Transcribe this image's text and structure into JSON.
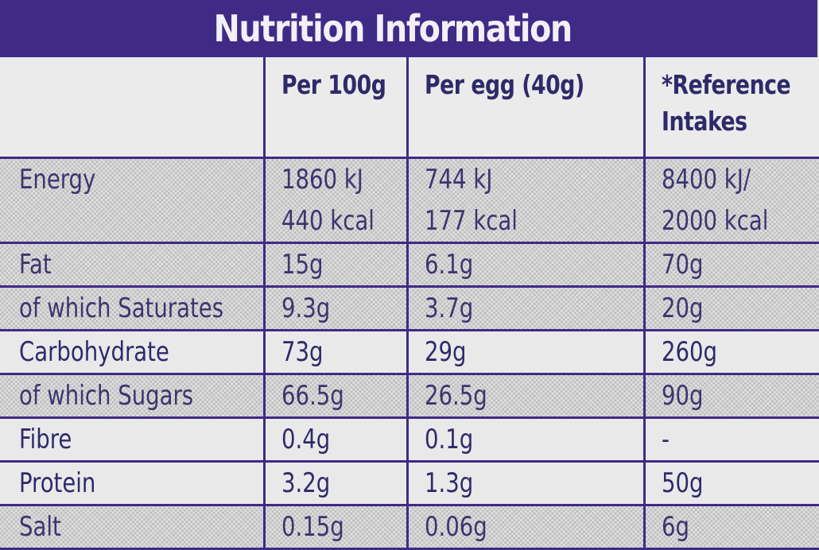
{
  "title": "Nutrition Information",
  "headers": [
    "",
    "Per 100g",
    "Per egg (40g)",
    "*Reference Intakes"
  ],
  "rows": [
    {
      "name": "Energy",
      "per100g": [
        "1860 kJ",
        "440 kcal"
      ],
      "perEgg": [
        "744 kJ",
        "177 kcal"
      ],
      "ri": [
        "8400 kJ/",
        "2000 kcal"
      ],
      "shaded": true
    },
    {
      "name": "Fat",
      "per100g": "15g",
      "perEgg": "6.1g",
      "ri": "70g",
      "shaded": true
    },
    {
      "name": "of which Saturates",
      "per100g": "9.3g",
      "perEgg": "3.7g",
      "ri": "20g",
      "shaded": true
    },
    {
      "name": "Carbohydrate",
      "per100g": "73g",
      "perEgg": "29g",
      "ri": "260g",
      "shaded": false
    },
    {
      "name": "of which Sugars",
      "per100g": "66.5g",
      "perEgg": "26.5g",
      "ri": "90g",
      "shaded": true
    },
    {
      "name": "Fibre",
      "per100g": "0.4g",
      "perEgg": "0.1g",
      "ri": "-",
      "shaded": false
    },
    {
      "name": "Protein",
      "per100g": "3.2g",
      "perEgg": "1.3g",
      "ri": "50g",
      "shaded": false
    },
    {
      "name": "Salt",
      "per100g": "0.15g",
      "perEgg": "0.06g",
      "ri": "6g",
      "shaded": true
    }
  ],
  "colors": {
    "brand_purple": "#3f2a86",
    "text": "#2e2a6a",
    "background": "#e9e9ea",
    "shaded_row": "#b9b9b9"
  }
}
